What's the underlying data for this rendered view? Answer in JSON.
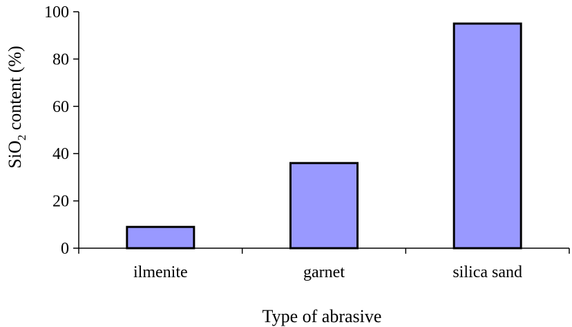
{
  "chart_data": {
    "type": "bar",
    "title": "",
    "categories": [
      "ilmenite",
      "garnet",
      "silica sand"
    ],
    "values": [
      9,
      36,
      95
    ],
    "xlabel": "Type of abrasive",
    "ylabel": {
      "prefix": "SiO",
      "subscript": "2",
      "suffix": " content (%)"
    },
    "ylim": [
      0,
      100
    ],
    "yticks": [
      "0",
      "20",
      "40",
      "60",
      "80",
      "100"
    ],
    "grid": false,
    "legend": "none",
    "bar_color": "#9999ff",
    "bar_edge_color": "#000000"
  }
}
